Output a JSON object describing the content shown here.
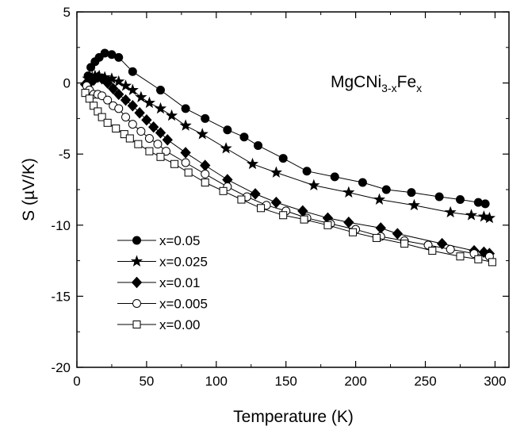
{
  "chart_data": {
    "type": "line",
    "title": "",
    "annotation": {
      "base": "MgCNi",
      "sub1": "3-x",
      "mid": "Fe",
      "sub2": "x"
    },
    "xlabel": "Temperature (K)",
    "ylabel": "S (µV/K)",
    "xlim": [
      0,
      310
    ],
    "ylim": [
      -20,
      5
    ],
    "xticks": [
      0,
      50,
      100,
      150,
      200,
      250,
      300
    ],
    "yticks": [
      -20,
      -15,
      -10,
      -5,
      0,
      5
    ],
    "xtick_labels": [
      "0",
      "50",
      "100",
      "150",
      "200",
      "250",
      "300"
    ],
    "ytick_labels": [
      "-20",
      "-15",
      "-10",
      "-5",
      "0",
      "5"
    ],
    "grid": false,
    "legend_position": "lower-left",
    "series": [
      {
        "name": "x=0.05",
        "marker": "filled-circle",
        "x": [
          8,
          10,
          13,
          16,
          20,
          25,
          30,
          40,
          60,
          78,
          92,
          108,
          120,
          130,
          148,
          165,
          185,
          205,
          222,
          240,
          260,
          275,
          288,
          293
        ],
        "y": [
          0.5,
          1.1,
          1.5,
          1.8,
          2.1,
          2.0,
          1.8,
          0.8,
          -0.5,
          -1.8,
          -2.5,
          -3.3,
          -3.8,
          -4.4,
          -5.3,
          -6.2,
          -6.6,
          -7.0,
          -7.5,
          -7.7,
          -8.0,
          -8.2,
          -8.4,
          -8.5
        ]
      },
      {
        "name": "x=0.025",
        "marker": "star",
        "x": [
          8,
          11,
          13,
          16,
          20,
          25,
          30,
          35,
          40,
          46,
          52,
          60,
          68,
          78,
          90,
          107,
          126,
          143,
          170,
          195,
          217,
          242,
          268,
          283,
          292,
          296
        ],
        "y": [
          0.3,
          0.4,
          0.5,
          0.5,
          0.4,
          0.3,
          0.1,
          -0.2,
          -0.5,
          -1.0,
          -1.4,
          -1.8,
          -2.3,
          -3.0,
          -3.6,
          -4.6,
          -5.7,
          -6.3,
          -7.2,
          -7.7,
          -8.2,
          -8.6,
          -9.1,
          -9.3,
          -9.4,
          -9.5
        ]
      },
      {
        "name": "x=0.01",
        "marker": "filled-diamond",
        "x": [
          6,
          8,
          10,
          12,
          15,
          18,
          22,
          26,
          30,
          35,
          40,
          45,
          50,
          55,
          60,
          65,
          78,
          92,
          108,
          128,
          143,
          162,
          180,
          195,
          218,
          230,
          262,
          285,
          292,
          296
        ],
        "y": [
          -0.1,
          -0.1,
          0.1,
          0.2,
          0.4,
          0.3,
          0.0,
          -0.4,
          -0.8,
          -1.2,
          -1.6,
          -2.1,
          -2.6,
          -3.1,
          -3.5,
          -4.0,
          -4.9,
          -5.8,
          -6.8,
          -7.8,
          -8.4,
          -9.0,
          -9.5,
          -9.8,
          -10.2,
          -10.6,
          -11.3,
          -11.8,
          -11.9,
          -12.0
        ]
      },
      {
        "name": "x=0.005",
        "marker": "open-circle",
        "x": [
          7,
          9,
          12,
          15,
          18,
          22,
          26,
          30,
          35,
          40,
          46,
          52,
          58,
          64,
          78,
          92,
          108,
          122,
          136,
          150,
          165,
          182,
          200,
          218,
          235,
          252,
          268,
          285,
          296
        ],
        "y": [
          -0.2,
          -0.5,
          -0.8,
          -0.8,
          -0.9,
          -1.2,
          -1.6,
          -1.8,
          -2.4,
          -2.9,
          -3.4,
          -3.9,
          -4.3,
          -4.8,
          -5.6,
          -6.4,
          -7.3,
          -8.0,
          -8.6,
          -9.0,
          -9.5,
          -9.9,
          -10.3,
          -10.8,
          -11.1,
          -11.4,
          -11.7,
          -12.0,
          -12.2
        ]
      },
      {
        "name": "x=0.00",
        "marker": "open-square",
        "x": [
          6,
          9,
          12,
          15,
          18,
          22,
          28,
          34,
          38,
          44,
          52,
          60,
          70,
          80,
          92,
          105,
          118,
          132,
          148,
          163,
          180,
          198,
          215,
          235,
          255,
          275,
          288,
          298
        ],
        "y": [
          -0.7,
          -1.1,
          -1.6,
          -2.0,
          -2.4,
          -2.8,
          -3.2,
          -3.6,
          -3.9,
          -4.3,
          -4.8,
          -5.2,
          -5.7,
          -6.3,
          -7.0,
          -7.6,
          -8.2,
          -8.8,
          -9.3,
          -9.6,
          -10.0,
          -10.5,
          -10.9,
          -11.3,
          -11.8,
          -12.2,
          -12.4,
          -12.6
        ]
      }
    ]
  }
}
